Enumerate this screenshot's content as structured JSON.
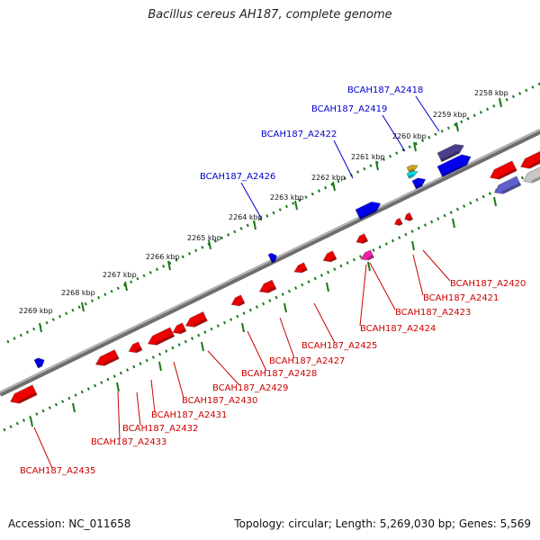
{
  "header": {
    "title": "Bacillus cereus AH187, complete genome"
  },
  "footer": {
    "accession": "Accession: NC_011658",
    "stats": "Topology: circular; Length: 5,269,030 bp; Genes: 5,569"
  },
  "colors": {
    "backbone": "#8a8a8a",
    "ruler": "#1a7a1a",
    "forward_gene": "#0000ee",
    "forward_label": "#0000cc",
    "reverse_gene": "#ee0000",
    "reverse_label": "#cc0000",
    "ruler_label": "#111111"
  },
  "ruler_labels": [
    "2258 kbp",
    "2259 kbp",
    "2260 kbp",
    "2261 kbp",
    "2262 kbp",
    "2263 kbp",
    "2264 kbp",
    "2265 kbp",
    "2266 kbp",
    "2267 kbp",
    "2268 kbp",
    "2269 kbp"
  ],
  "forward_labels": [
    "BCAH187_A2418",
    "BCAH187_A2419",
    "BCAH187_A2422",
    "BCAH187_A2426"
  ],
  "reverse_labels": [
    "BCAH187_A2420",
    "BCAH187_A2421",
    "BCAH187_A2423",
    "BCAH187_A2424",
    "BCAH187_A2425",
    "BCAH187_A2427",
    "BCAH187_A2428",
    "BCAH187_A2429",
    "BCAH187_A2430",
    "BCAH187_A2431",
    "BCAH187_A2432",
    "BCAH187_A2433",
    "BCAH187_A2435"
  ]
}
